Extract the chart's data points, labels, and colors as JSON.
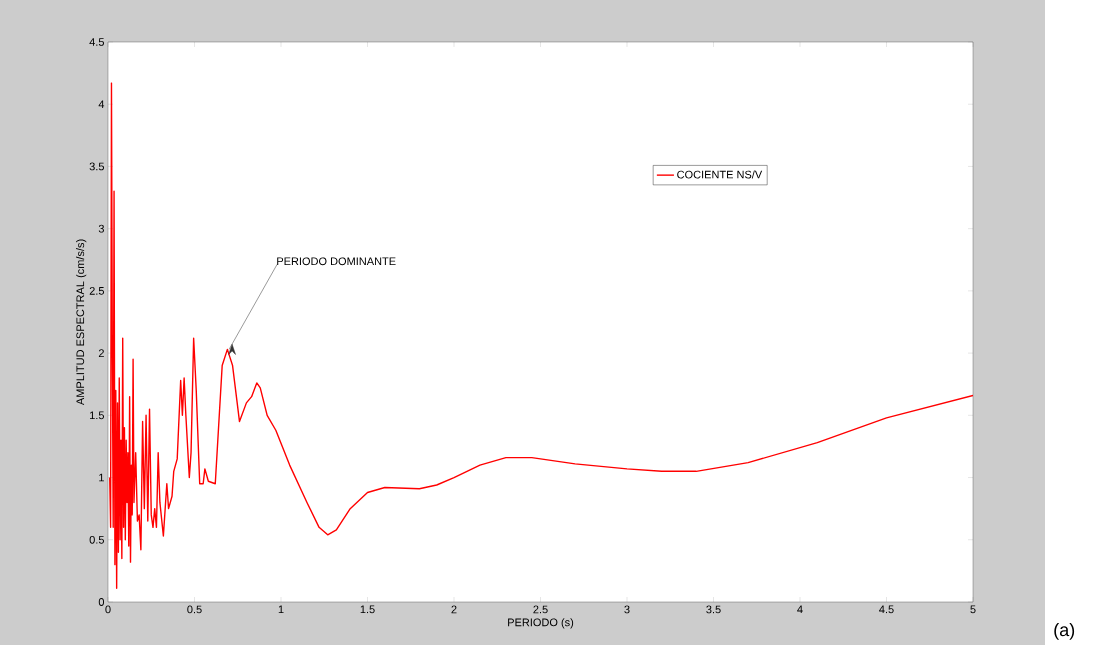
{
  "chart_data": {
    "type": "line",
    "xlabel": "PERIODO (s)",
    "ylabel": "AMPLITUD ESPECTRAL (cm/s/s)",
    "xlim": [
      0,
      5
    ],
    "ylim": [
      0,
      4.5
    ],
    "xticks": [
      0,
      0.5,
      1,
      1.5,
      2,
      2.5,
      3,
      3.5,
      4,
      4.5,
      5
    ],
    "yticks": [
      0,
      0.5,
      1,
      1.5,
      2,
      2.5,
      3,
      3.5,
      4,
      4.5
    ],
    "legend": "top right",
    "marker": "none",
    "line_style": "solid",
    "grid": false,
    "annotations": [
      {
        "text": "PERIODO DOMINANTE",
        "x": 0.7,
        "y": 2.03
      },
      "(a)"
    ],
    "series": [
      {
        "name": "COCIENTE NS/V",
        "color": "#ff0000",
        "x": [
          0.01,
          0.015,
          0.02,
          0.025,
          0.03,
          0.035,
          0.04,
          0.045,
          0.05,
          0.055,
          0.06,
          0.065,
          0.07,
          0.075,
          0.08,
          0.085,
          0.09,
          0.095,
          0.1,
          0.105,
          0.11,
          0.115,
          0.12,
          0.125,
          0.13,
          0.135,
          0.14,
          0.145,
          0.15,
          0.16,
          0.17,
          0.18,
          0.19,
          0.2,
          0.21,
          0.22,
          0.23,
          0.24,
          0.25,
          0.26,
          0.27,
          0.28,
          0.29,
          0.3,
          0.32,
          0.34,
          0.35,
          0.37,
          0.38,
          0.4,
          0.42,
          0.43,
          0.44,
          0.45,
          0.47,
          0.48,
          0.495,
          0.51,
          0.53,
          0.55,
          0.56,
          0.58,
          0.62,
          0.66,
          0.69,
          0.72,
          0.76,
          0.8,
          0.83,
          0.86,
          0.88,
          0.92,
          0.97,
          1.05,
          1.15,
          1.22,
          1.27,
          1.32,
          1.4,
          1.5,
          1.6,
          1.8,
          1.9,
          2.0,
          2.15,
          2.3,
          2.45,
          2.7,
          3.0,
          3.2,
          3.4,
          3.7,
          4.1,
          4.5,
          5.0
        ],
        "values": [
          1.0,
          0.6,
          4.17,
          2.0,
          0.6,
          3.3,
          0.3,
          1.7,
          0.11,
          1.6,
          0.4,
          1.8,
          0.5,
          1.3,
          0.35,
          2.12,
          0.6,
          1.4,
          0.5,
          1.3,
          0.8,
          1.2,
          0.45,
          1.65,
          0.32,
          1.1,
          0.7,
          1.95,
          0.8,
          1.2,
          0.65,
          0.7,
          0.42,
          1.45,
          0.75,
          1.5,
          0.65,
          1.55,
          0.7,
          0.6,
          0.75,
          0.6,
          1.2,
          0.8,
          0.53,
          0.95,
          0.75,
          0.85,
          1.05,
          1.15,
          1.78,
          1.5,
          1.8,
          1.5,
          1.0,
          1.2,
          2.12,
          1.7,
          0.95,
          0.95,
          1.07,
          0.97,
          0.95,
          1.9,
          2.03,
          1.9,
          1.45,
          1.6,
          1.65,
          1.76,
          1.72,
          1.5,
          1.38,
          1.1,
          0.8,
          0.6,
          0.54,
          0.58,
          0.75,
          0.88,
          0.92,
          0.91,
          0.94,
          1.0,
          1.1,
          1.16,
          1.16,
          1.11,
          1.07,
          1.05,
          1.05,
          1.12,
          1.28,
          1.48,
          1.66
        ]
      }
    ]
  }
}
